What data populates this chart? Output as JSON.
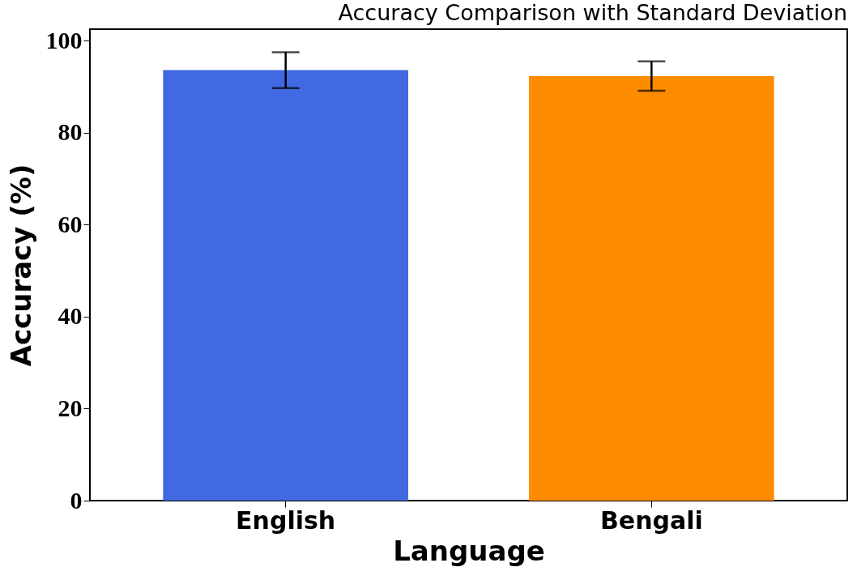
{
  "chart_data": {
    "type": "bar",
    "title": "Accuracy Comparison with Standard Deviation",
    "xlabel": "Language",
    "ylabel": "Accuracy (%)",
    "categories": [
      "English",
      "Bengali"
    ],
    "values": [
      93.6,
      92.3
    ],
    "colors": [
      "#4169e1",
      "#ff8c00"
    ],
    "errors": [
      3.9,
      3.2
    ],
    "ylim": [
      0,
      102.5
    ],
    "yticks": [
      0,
      20,
      40,
      60,
      80,
      100
    ],
    "grid": false
  }
}
